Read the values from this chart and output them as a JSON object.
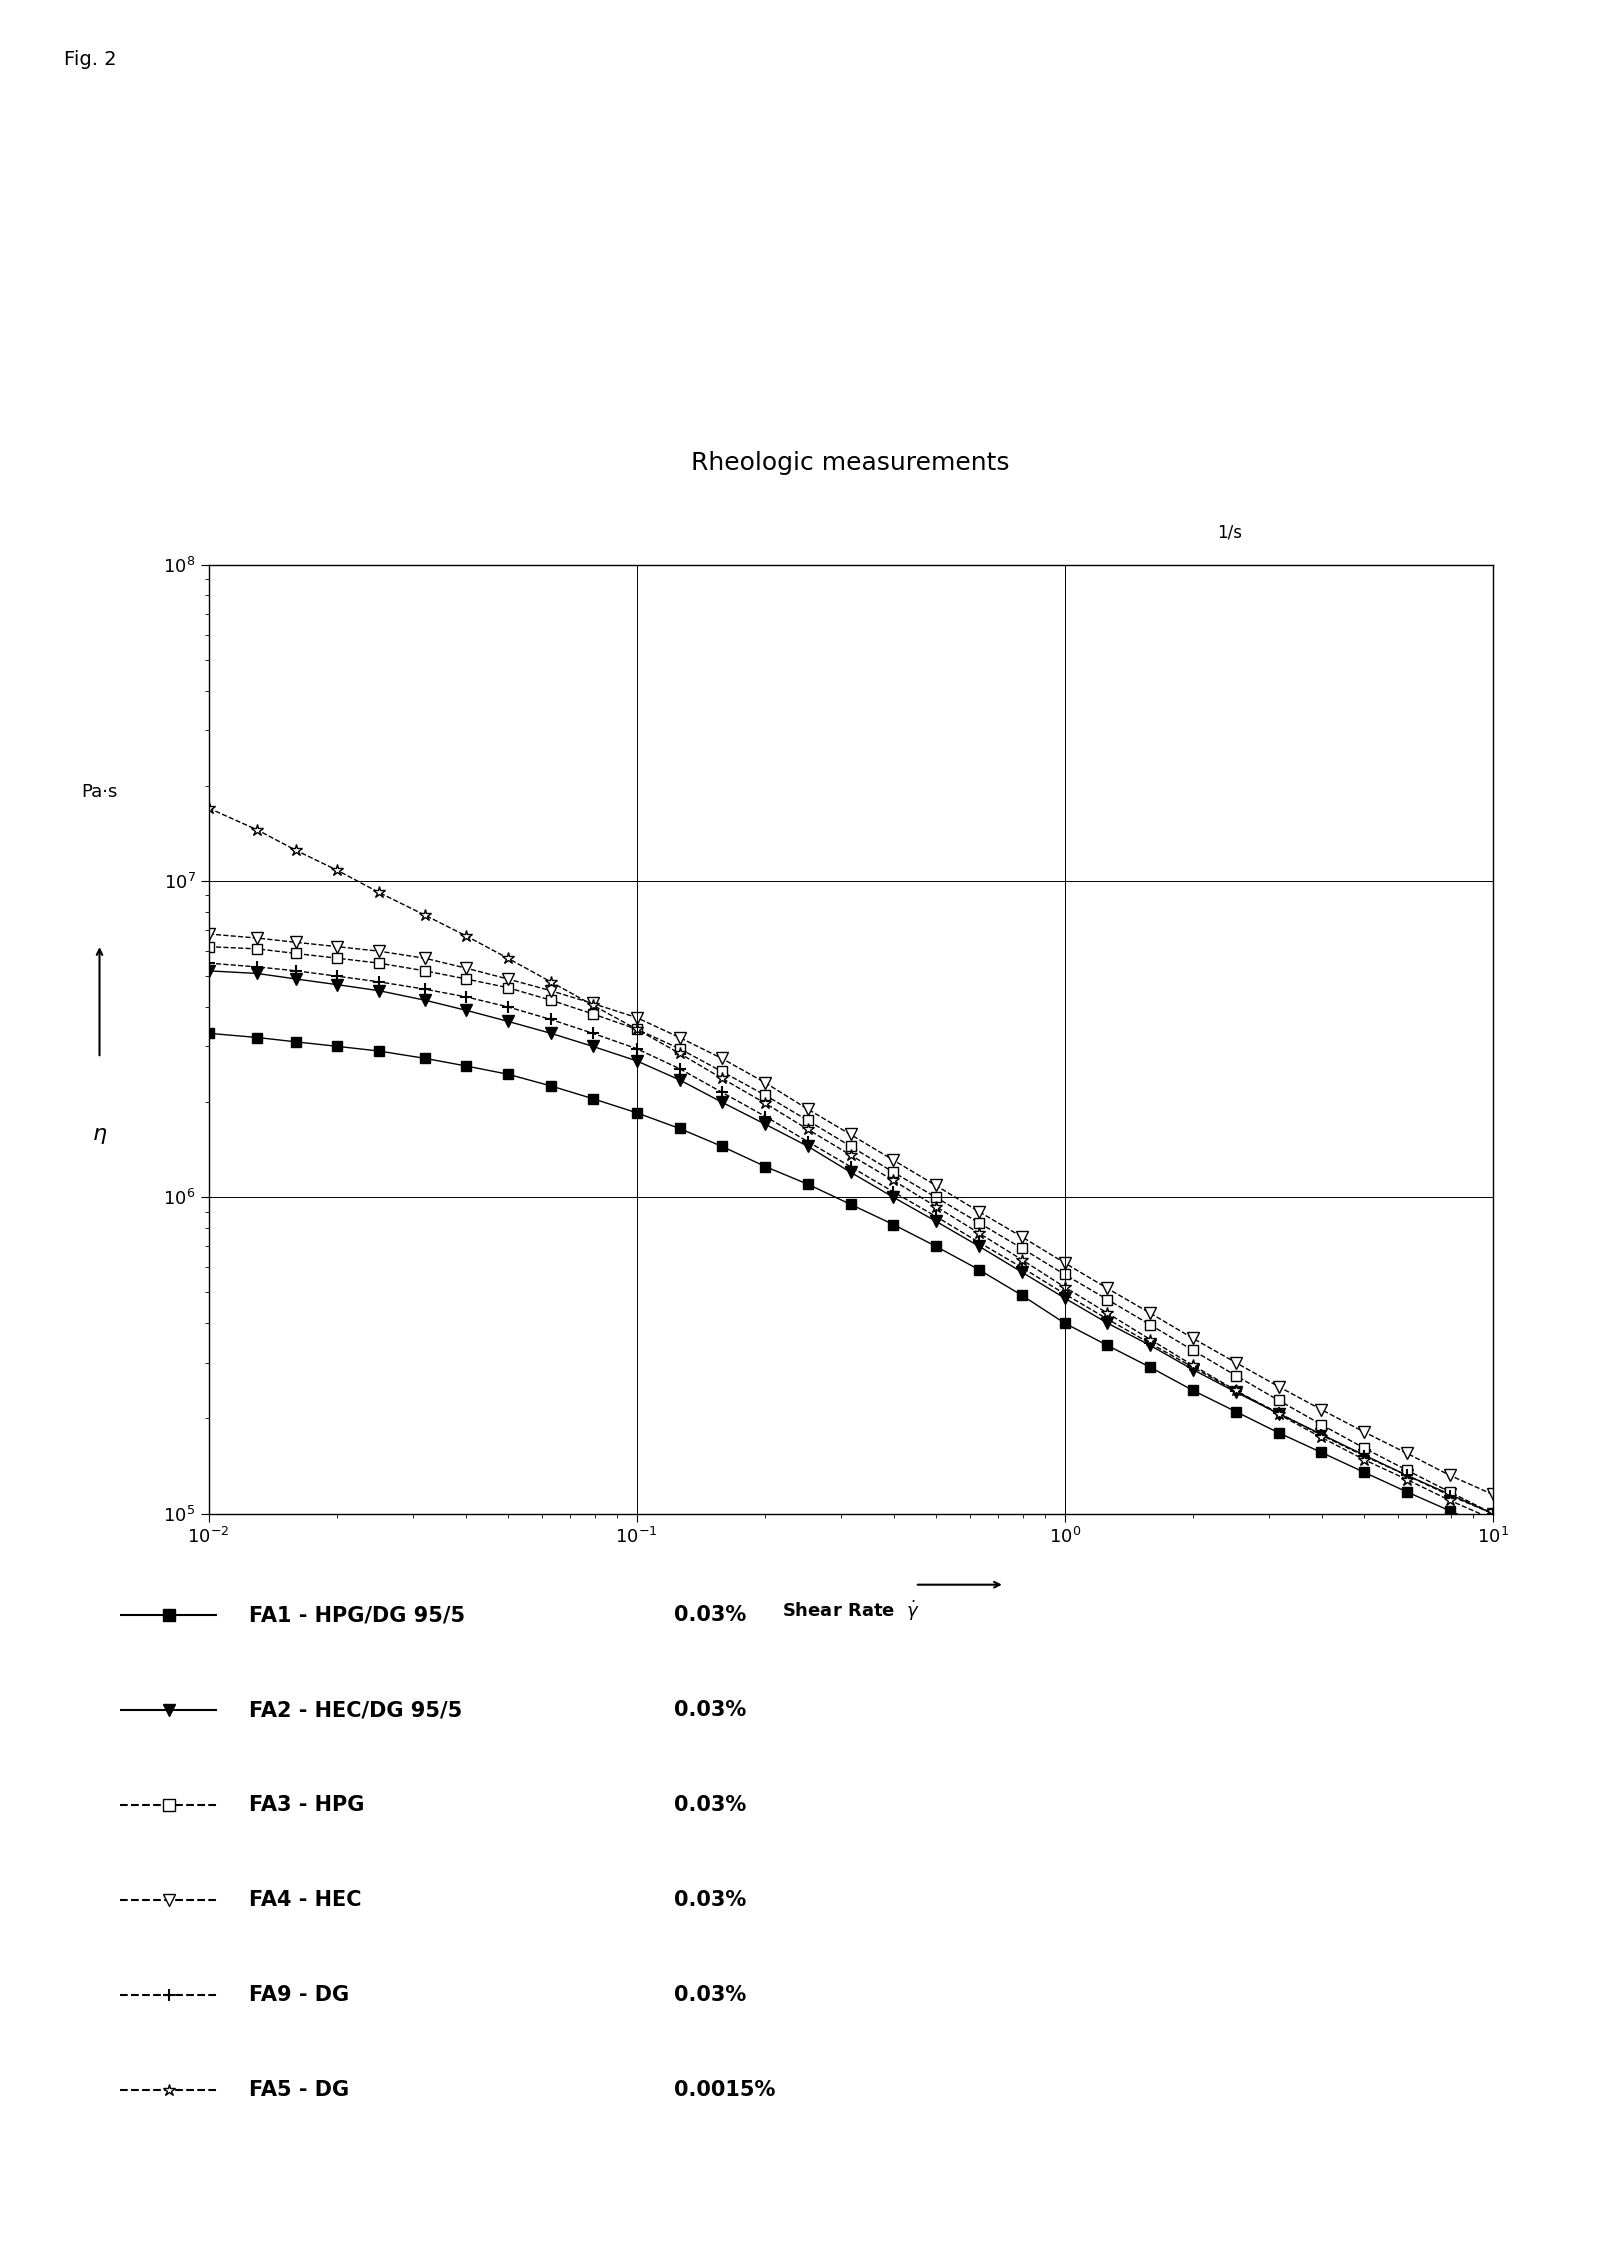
{
  "title": "Rheologic measurements",
  "fig_label": "Fig. 2",
  "xlim": [
    0.01,
    10
  ],
  "ylim": [
    100000.0,
    100000000.0
  ],
  "series": [
    {
      "label_name": "FA1 - HPG/DG 95/5",
      "label_conc": "0.03%",
      "x": [
        0.01,
        0.013,
        0.016,
        0.02,
        0.025,
        0.032,
        0.04,
        0.05,
        0.063,
        0.079,
        0.1,
        0.126,
        0.158,
        0.2,
        0.251,
        0.316,
        0.398,
        0.5,
        0.631,
        0.794,
        1.0,
        1.259,
        1.585,
        1.995,
        2.512,
        3.162,
        3.981,
        5.012,
        6.31,
        7.943,
        10.0
      ],
      "y": [
        3300000,
        3200000,
        3100000,
        3000000,
        2900000,
        2750000,
        2600000,
        2450000,
        2250000,
        2050000,
        1850000,
        1650000,
        1450000,
        1250000,
        1100000,
        950000,
        820000,
        700000,
        590000,
        490000,
        400000,
        340000,
        290000,
        245000,
        210000,
        180000,
        156000,
        135000,
        117000,
        102000,
        89000
      ],
      "color": "#000000",
      "marker": "s",
      "filled": true,
      "linestyle": "-"
    },
    {
      "label_name": "FA2 - HEC/DG 95/5",
      "label_conc": "0.03%",
      "x": [
        0.01,
        0.013,
        0.016,
        0.02,
        0.025,
        0.032,
        0.04,
        0.05,
        0.063,
        0.079,
        0.1,
        0.126,
        0.158,
        0.2,
        0.251,
        0.316,
        0.398,
        0.5,
        0.631,
        0.794,
        1.0,
        1.259,
        1.585,
        1.995,
        2.512,
        3.162,
        3.981,
        5.012,
        6.31,
        7.943,
        10.0
      ],
      "y": [
        5200000,
        5100000,
        4900000,
        4700000,
        4500000,
        4200000,
        3900000,
        3600000,
        3300000,
        3000000,
        2700000,
        2350000,
        2000000,
        1700000,
        1450000,
        1200000,
        1000000,
        840000,
        700000,
        580000,
        480000,
        400000,
        340000,
        285000,
        242000,
        207000,
        178000,
        153000,
        132000,
        115000,
        100000
      ],
      "color": "#000000",
      "marker": "v",
      "filled": true,
      "linestyle": "-"
    },
    {
      "label_name": "FA3 - HPG",
      "label_conc": "0.03%",
      "x": [
        0.01,
        0.013,
        0.016,
        0.02,
        0.025,
        0.032,
        0.04,
        0.05,
        0.063,
        0.079,
        0.1,
        0.126,
        0.158,
        0.2,
        0.251,
        0.316,
        0.398,
        0.5,
        0.631,
        0.794,
        1.0,
        1.259,
        1.585,
        1.995,
        2.512,
        3.162,
        3.981,
        5.012,
        6.31,
        7.943,
        10.0
      ],
      "y": [
        6200000,
        6100000,
        5900000,
        5700000,
        5500000,
        5200000,
        4900000,
        4600000,
        4200000,
        3800000,
        3400000,
        2950000,
        2500000,
        2100000,
        1750000,
        1450000,
        1200000,
        1000000,
        830000,
        690000,
        570000,
        475000,
        395000,
        328000,
        273000,
        228000,
        191000,
        161000,
        137000,
        117000,
        100000
      ],
      "color": "#000000",
      "marker": "s",
      "filled": false,
      "linestyle": "--"
    },
    {
      "label_name": "FA4 - HEC",
      "label_conc": "0.03%",
      "x": [
        0.01,
        0.013,
        0.016,
        0.02,
        0.025,
        0.032,
        0.04,
        0.05,
        0.063,
        0.079,
        0.1,
        0.126,
        0.158,
        0.2,
        0.251,
        0.316,
        0.398,
        0.5,
        0.631,
        0.794,
        1.0,
        1.259,
        1.585,
        1.995,
        2.512,
        3.162,
        3.981,
        5.012,
        6.31,
        7.943,
        10.0
      ],
      "y": [
        6800000,
        6600000,
        6400000,
        6200000,
        6000000,
        5700000,
        5300000,
        4900000,
        4500000,
        4100000,
        3700000,
        3200000,
        2750000,
        2300000,
        1900000,
        1580000,
        1310000,
        1090000,
        900000,
        750000,
        620000,
        515000,
        430000,
        358000,
        300000,
        252000,
        213000,
        181000,
        155000,
        132000,
        115000
      ],
      "color": "#000000",
      "marker": "v",
      "filled": false,
      "linestyle": "--"
    },
    {
      "label_name": "FA9 - DG",
      "label_conc": "0.03%",
      "x": [
        0.01,
        0.013,
        0.016,
        0.02,
        0.025,
        0.032,
        0.04,
        0.05,
        0.063,
        0.079,
        0.1,
        0.126,
        0.158,
        0.2,
        0.251,
        0.316,
        0.398,
        0.5,
        0.631,
        0.794,
        1.0,
        1.259,
        1.585,
        1.995,
        2.512,
        3.162,
        3.981,
        5.012,
        6.31,
        7.943,
        10.0
      ],
      "y": [
        5500000,
        5350000,
        5200000,
        5000000,
        4800000,
        4550000,
        4300000,
        4000000,
        3650000,
        3300000,
        2950000,
        2550000,
        2150000,
        1800000,
        1500000,
        1250000,
        1040000,
        870000,
        720000,
        600000,
        495000,
        412000,
        345000,
        290000,
        244000,
        208000,
        177000,
        152000,
        132000,
        114000,
        100000
      ],
      "color": "#000000",
      "marker": "+",
      "filled": false,
      "linestyle": "--"
    },
    {
      "label_name": "FA5 - DG",
      "label_conc": "0.0015%",
      "x": [
        0.01,
        0.013,
        0.016,
        0.02,
        0.025,
        0.032,
        0.04,
        0.05,
        0.063,
        0.079,
        0.1,
        0.126,
        0.158,
        0.2,
        0.251,
        0.316,
        0.398,
        0.5,
        0.631,
        0.794,
        1.0,
        1.259,
        1.585,
        1.995,
        2.512,
        3.162,
        3.981,
        5.012,
        6.31,
        7.943,
        10.0
      ],
      "y": [
        17000000,
        14500000,
        12500000,
        10800000,
        9200000,
        7800000,
        6700000,
        5700000,
        4800000,
        4050000,
        3400000,
        2850000,
        2380000,
        1980000,
        1640000,
        1360000,
        1130000,
        935000,
        770000,
        635000,
        520000,
        430000,
        355000,
        294000,
        245000,
        206000,
        174000,
        148000,
        128000,
        110000,
        96000
      ],
      "color": "#000000",
      "marker": "*",
      "filled": false,
      "linestyle": "--"
    }
  ],
  "legend_items": [
    {
      "marker": "s",
      "filled": true,
      "color": "#000000",
      "ls": "-",
      "name": "FA1 - HPG/DG 95/5",
      "conc": "0.03%"
    },
    {
      "marker": "v",
      "filled": true,
      "color": "#000000",
      "ls": "-",
      "name": "FA2 - HEC/DG 95/5",
      "conc": "0.03%"
    },
    {
      "marker": "s",
      "filled": false,
      "color": "#000000",
      "ls": "--",
      "name": "FA3 - HPG",
      "conc": "0.03%"
    },
    {
      "marker": "v",
      "filled": false,
      "color": "#000000",
      "ls": "--",
      "name": "FA4 - HEC",
      "conc": "0.03%"
    },
    {
      "marker": "+",
      "filled": false,
      "color": "#000000",
      "ls": "--",
      "name": "FA9 - DG",
      "conc": "0.03%"
    },
    {
      "marker": "*",
      "filled": false,
      "color": "#000000",
      "ls": "--",
      "name": "FA5 - DG",
      "conc": "0.0015%"
    }
  ]
}
